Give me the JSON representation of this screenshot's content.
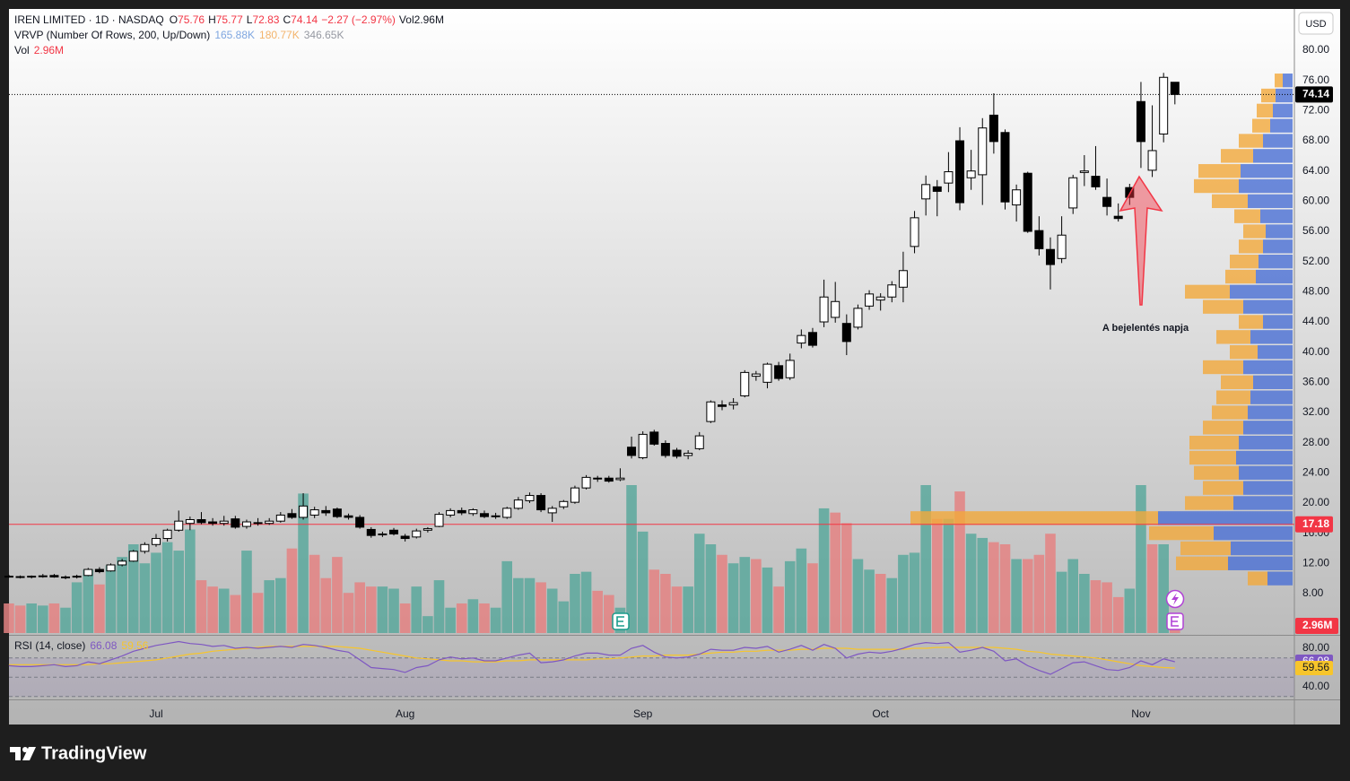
{
  "chart_data": {
    "type": "candlestick",
    "title": "IREN LIMITED · 1D · NASDAQ",
    "currency": "USD",
    "ohlc_prefix": [
      "O",
      "H",
      "L",
      "C"
    ],
    "change_label": "−2.27 (−2.97%)",
    "categories": [
      null,
      null,
      null,
      null,
      null,
      null,
      null,
      null,
      null,
      null,
      null,
      null,
      null,
      "Jul",
      null,
      null,
      null,
      null,
      null,
      null,
      null,
      null,
      null,
      null,
      null,
      null,
      null,
      null,
      null,
      null,
      null,
      null,
      null,
      null,
      null,
      "Aug",
      null,
      null,
      null,
      null,
      null,
      null,
      null,
      null,
      null,
      null,
      null,
      null,
      null,
      null,
      null,
      null,
      null,
      null,
      null,
      null,
      "Sep",
      null,
      null,
      null,
      null,
      null,
      null,
      null,
      null,
      null,
      null,
      null,
      null,
      null,
      null,
      null,
      null,
      null,
      null,
      null,
      null,
      "Oct",
      null,
      null,
      null,
      null,
      null,
      null,
      null,
      null,
      null,
      null,
      null,
      null,
      null,
      null,
      null,
      null,
      null,
      null,
      null,
      null,
      null,
      null,
      "Nov",
      null,
      null,
      null
    ],
    "open": [
      10.3,
      10.25,
      10.2,
      10.3,
      10.4,
      10.2,
      10.2,
      10.4,
      11.2,
      11.0,
      11.8,
      12.3,
      13.6,
      14.5,
      15.3,
      16.4,
      17.3,
      17.8,
      17.5,
      17.3,
      17.9,
      16.9,
      17.4,
      17.3,
      17.6,
      18.6,
      18.1,
      18.4,
      19.0,
      19.2,
      18.3,
      18.1,
      16.5,
      15.8,
      16.4,
      15.6,
      15.5,
      16.4,
      16.9,
      18.4,
      19.0,
      18.6,
      18.6,
      18.2,
      18.1,
      19.3,
      20.3,
      21.0,
      18.7,
      19.5,
      20.1,
      22.0,
      23.2,
      23.3,
      23.1,
      27.4,
      26.0,
      29.4,
      27.9,
      27.0,
      26.3,
      27.2,
      30.8,
      33.0,
      33.0,
      34.2,
      36.8,
      36.0,
      38.2,
      36.6,
      41.2,
      42.6,
      44.0,
      44.6,
      43.8,
      43.3,
      46.1,
      46.9,
      47.3,
      48.6,
      54.0,
      60.3,
      61.9,
      62.4,
      68.0,
      63.1,
      63.5,
      71.4,
      69.1,
      59.5,
      63.7,
      56.1,
      53.6,
      52.4,
      59.1,
      63.8,
      63.3,
      60.5,
      58.0,
      61.8,
      73.2,
      64.1,
      68.9,
      75.76
    ],
    "high": [
      10.5,
      10.4,
      10.4,
      10.6,
      10.6,
      10.4,
      10.5,
      11.4,
      11.5,
      12.0,
      12.6,
      13.8,
      14.8,
      15.9,
      16.6,
      19.0,
      18.2,
      18.8,
      18.0,
      18.3,
      18.3,
      17.8,
      18.0,
      18.0,
      18.8,
      19.2,
      21.3,
      19.5,
      19.6,
      19.4,
      18.6,
      18.4,
      16.8,
      16.2,
      16.7,
      15.9,
      16.6,
      16.8,
      18.8,
      19.3,
      19.4,
      19.3,
      19.0,
      18.7,
      19.5,
      20.8,
      21.4,
      21.3,
      19.6,
      20.4,
      22.3,
      23.7,
      23.6,
      23.6,
      24.6,
      28.8,
      29.5,
      29.7,
      28.3,
      27.3,
      27.0,
      29.4,
      33.6,
      33.6,
      33.9,
      37.6,
      37.5,
      38.6,
      38.7,
      39.8,
      43.0,
      43.2,
      49.6,
      49.3,
      45.0,
      46.3,
      48.2,
      47.8,
      49.4,
      53.3,
      58.7,
      63.4,
      62.8,
      66.5,
      69.8,
      66.8,
      71.0,
      74.3,
      69.5,
      62.2,
      63.9,
      58.0,
      55.2,
      58.0,
      63.5,
      66.1,
      67.3,
      63.0,
      59.7,
      62.3,
      75.8,
      72.7,
      77.0,
      75.77
    ],
    "low": [
      10.1,
      10.0,
      10.0,
      10.1,
      10.1,
      9.9,
      10.0,
      10.3,
      10.7,
      10.9,
      11.6,
      12.2,
      13.3,
      14.2,
      14.9,
      16.2,
      16.4,
      17.2,
      17.0,
      17.0,
      16.6,
      16.6,
      17.0,
      17.1,
      17.4,
      17.9,
      17.8,
      18.0,
      18.3,
      18.0,
      17.8,
      16.6,
      15.4,
      15.5,
      15.7,
      14.9,
      15.3,
      16.1,
      16.8,
      18.1,
      18.4,
      18.3,
      18.0,
      17.9,
      17.9,
      19.1,
      20.0,
      18.8,
      17.5,
      19.2,
      19.9,
      21.8,
      22.8,
      22.7,
      22.9,
      25.9,
      25.8,
      27.6,
      26.0,
      25.9,
      25.8,
      27.0,
      30.6,
      32.3,
      32.4,
      34.0,
      36.2,
      35.2,
      36.2,
      36.3,
      40.5,
      40.6,
      43.3,
      43.9,
      39.6,
      43.0,
      45.6,
      45.5,
      46.6,
      46.6,
      53.1,
      58.1,
      58.0,
      61.2,
      58.8,
      61.5,
      59.5,
      66.3,
      58.9,
      57.3,
      55.8,
      52.8,
      48.3,
      51.8,
      58.3,
      62.0,
      61.5,
      58.1,
      57.3,
      59.5,
      64.4,
      63.2,
      67.8,
      72.83
    ],
    "close": [
      10.25,
      10.2,
      10.3,
      10.35,
      10.2,
      10.2,
      10.3,
      11.2,
      10.9,
      11.8,
      12.3,
      13.6,
      14.5,
      15.3,
      16.4,
      17.6,
      17.8,
      17.4,
      17.3,
      17.6,
      16.8,
      17.5,
      17.3,
      17.6,
      18.4,
      18.1,
      19.6,
      19.1,
      18.7,
      18.2,
      18.1,
      16.8,
      15.7,
      15.9,
      15.9,
      15.3,
      16.3,
      16.6,
      18.5,
      19.0,
      18.7,
      19.1,
      18.2,
      18.3,
      19.3,
      20.4,
      21.0,
      19.1,
      19.3,
      20.2,
      22.0,
      23.4,
      23.3,
      22.9,
      23.3,
      26.3,
      29.1,
      27.8,
      26.3,
      26.2,
      26.6,
      28.9,
      33.4,
      32.8,
      33.3,
      37.3,
      37.1,
      38.4,
      36.5,
      38.9,
      42.2,
      40.9,
      47.3,
      46.7,
      41.4,
      45.8,
      47.7,
      47.3,
      48.9,
      50.8,
      57.8,
      62.2,
      61.3,
      63.9,
      59.8,
      64.0,
      69.7,
      67.9,
      59.9,
      61.5,
      56.0,
      53.7,
      51.6,
      55.5,
      63.1,
      64.0,
      61.9,
      59.3,
      57.7,
      60.5,
      67.9,
      66.7,
      76.41,
      74.14
    ],
    "candle_colors": {
      "up": "#ffffff",
      "down": "#000000",
      "outline": "#000000",
      "change": "#f23645"
    },
    "ylim": [
      2.65,
      85.47
    ],
    "yticks": [
      {
        "value": 8,
        "label": "8.00"
      },
      {
        "value": 12,
        "label": "12.00"
      },
      {
        "value": 16,
        "label": "16.00"
      },
      {
        "value": 20,
        "label": "20.00"
      },
      {
        "value": 24,
        "label": "24.00"
      },
      {
        "value": 28,
        "label": "28.00"
      },
      {
        "value": 32,
        "label": "32.00"
      },
      {
        "value": 36,
        "label": "36.00"
      },
      {
        "value": 40,
        "label": "40.00"
      },
      {
        "value": 44,
        "label": "44.00"
      },
      {
        "value": 48,
        "label": "48.00"
      },
      {
        "value": 52,
        "label": "52.00"
      },
      {
        "value": 56,
        "label": "56.00"
      },
      {
        "value": 60,
        "label": "60.00"
      },
      {
        "value": 64,
        "label": "64.00"
      },
      {
        "value": 68,
        "label": "68.00"
      },
      {
        "value": 72,
        "label": "72.00"
      },
      {
        "value": 76,
        "label": "76.00"
      },
      {
        "value": 80,
        "label": "80.00"
      }
    ],
    "grid": false,
    "hline": {
      "value": 17.18,
      "color": "#f23645"
    },
    "volume": {
      "name": "Vol",
      "value_label": "2.96M",
      "up_color": "#5aa89c",
      "down_color": "#e48383",
      "values": [
        14,
        13,
        14,
        13,
        14,
        12,
        24,
        30,
        23,
        32,
        36,
        42,
        33,
        38,
        43,
        39,
        49,
        25,
        22,
        21,
        18,
        39,
        19,
        25,
        26,
        40,
        66,
        37,
        26,
        36,
        19,
        24,
        22,
        22,
        21,
        14,
        22,
        8,
        25,
        12,
        14,
        16,
        14,
        12,
        34,
        26,
        26,
        24,
        21,
        15,
        28,
        29,
        20,
        18,
        12,
        70,
        48,
        30,
        28,
        22,
        22,
        47,
        42,
        37,
        33,
        36,
        35,
        31,
        22,
        34,
        40,
        33,
        59,
        57,
        52,
        35,
        30,
        28,
        26,
        37,
        38,
        70,
        54,
        54,
        67,
        47,
        45,
        43,
        42,
        35,
        35,
        37,
        47,
        29,
        35,
        28,
        25,
        24,
        17,
        21,
        70,
        42,
        42,
        2.96
      ]
    },
    "vrvp": {
      "name": "VRVP (Number Of Rows, 200, Up/Down)",
      "legend_values": [
        "165.88K",
        "180.77K",
        "346.65K"
      ],
      "legend_colors": [
        "#7ea6e0",
        "#f3b36b",
        "#9598a1"
      ],
      "up_color": "#4a6fd4",
      "down_color": "#f2a93b",
      "prices": [
        10,
        12,
        14,
        16,
        18,
        20,
        22,
        24,
        26,
        28,
        30,
        32,
        34,
        36,
        38,
        40,
        42,
        44,
        46,
        48,
        50,
        52,
        54,
        56,
        58,
        60,
        62,
        64,
        66,
        68,
        70,
        72,
        74,
        76
      ],
      "up": [
        28,
        72,
        69,
        88,
        150,
        66,
        55,
        60,
        63,
        60,
        55,
        50,
        47,
        44,
        55,
        39,
        47,
        33,
        55,
        70,
        41,
        38,
        33,
        30,
        36,
        50,
        60,
        58,
        44,
        33,
        25,
        22,
        19,
        11
      ],
      "down": [
        22,
        58,
        56,
        72,
        276,
        54,
        45,
        50,
        52,
        55,
        45,
        40,
        38,
        36,
        45,
        31,
        38,
        27,
        45,
        50,
        34,
        32,
        27,
        25,
        29,
        40,
        50,
        47,
        36,
        27,
        20,
        18,
        16,
        9
      ]
    },
    "rsi": {
      "name": "RSI (14, close)",
      "color": "#7e57c2",
      "ma_color": "#f7c52b",
      "ylim": [
        27.9,
        91.2
      ],
      "yticks": [
        {
          "value": 80,
          "label": "80.00"
        },
        {
          "value": 40,
          "label": "40.00"
        }
      ],
      "levels": [
        70,
        50,
        30
      ],
      "values": [
        62,
        61,
        61,
        62,
        63,
        61,
        62,
        66,
        64,
        68,
        72,
        77,
        80,
        83,
        85,
        87,
        85,
        84,
        82,
        83,
        80,
        81,
        80,
        81,
        82,
        81,
        84,
        83,
        81,
        78,
        76,
        68,
        60,
        59,
        58,
        55,
        60,
        62,
        68,
        71,
        69,
        70,
        67,
        67,
        70,
        73,
        75,
        65,
        66,
        68,
        72,
        75,
        75,
        73,
        73,
        80,
        83,
        76,
        71,
        70,
        71,
        74,
        79,
        78,
        78,
        81,
        80,
        82,
        76,
        79,
        83,
        78,
        84,
        80,
        70,
        74,
        76,
        75,
        77,
        80,
        84,
        86,
        85,
        86,
        76,
        78,
        81,
        77,
        67,
        69,
        62,
        57,
        53,
        59,
        65,
        66,
        62,
        58,
        57,
        60,
        67,
        63,
        69,
        66.08
      ],
      "ma": [
        63,
        63,
        63,
        63,
        63,
        63,
        63,
        63,
        64,
        64,
        65,
        66,
        67,
        68,
        70,
        72,
        74,
        75,
        77,
        78,
        79,
        80,
        81,
        82,
        82,
        82,
        82,
        82,
        82,
        82,
        81,
        80,
        78,
        76,
        74,
        72,
        70,
        69,
        68,
        67,
        67,
        66,
        66,
        66,
        67,
        67,
        68,
        68,
        68,
        68,
        68,
        68,
        69,
        69,
        70,
        71,
        72,
        72,
        73,
        73,
        73,
        74,
        75,
        76,
        76,
        77,
        77,
        78,
        78,
        78,
        79,
        79,
        80,
        80,
        80,
        79,
        79,
        79,
        79,
        79,
        80,
        80,
        81,
        81,
        81,
        81,
        81,
        81,
        80,
        79,
        77,
        76,
        74,
        73,
        72,
        71,
        70,
        68,
        66,
        64,
        62,
        61,
        60,
        59.56
      ]
    },
    "annotation": "A bejelentés napja",
    "brand": "TradingView"
  }
}
